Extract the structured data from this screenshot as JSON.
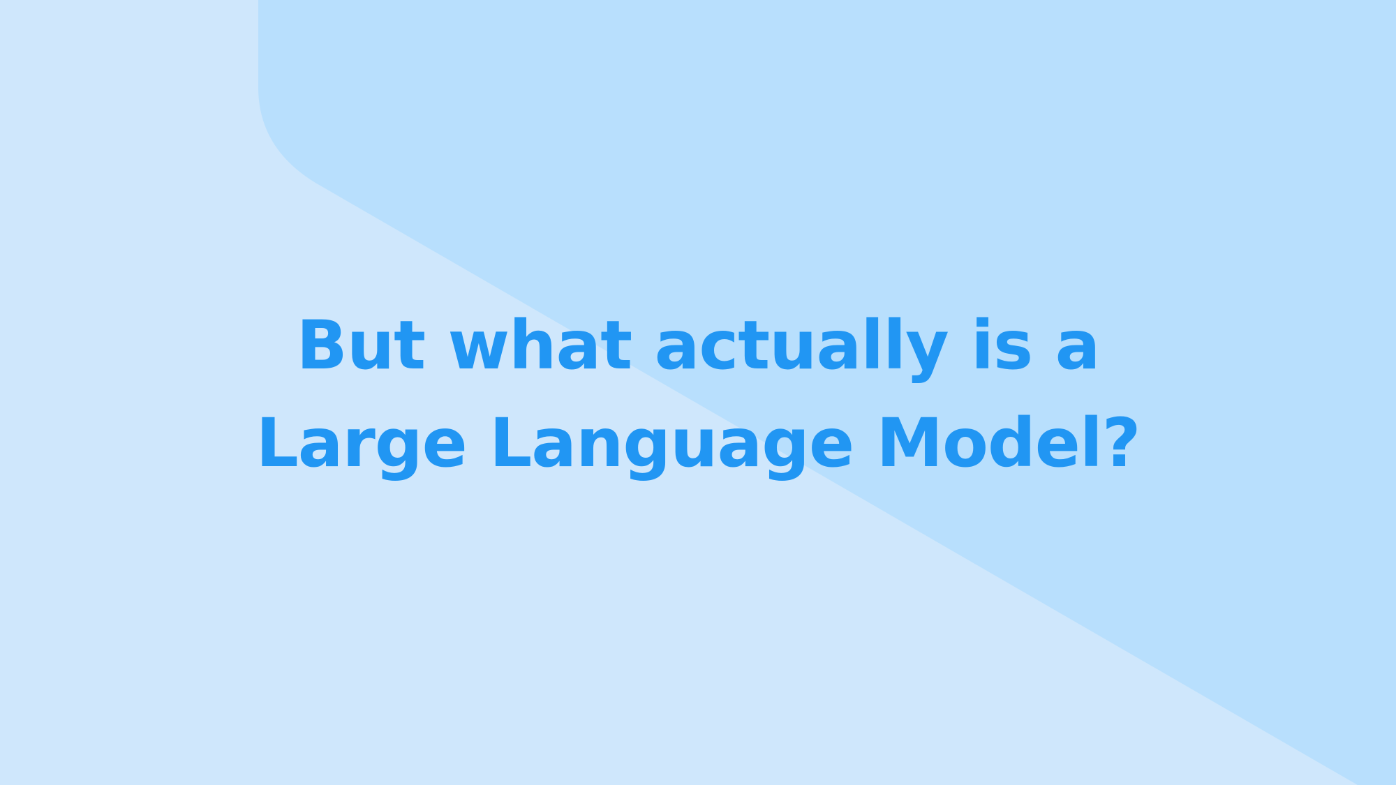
{
  "slide": {
    "headline_line1": "But what actually is a",
    "headline_line2": "Large Language Model?"
  },
  "colors": {
    "background": "#cfe7fc",
    "shape": "#b8dffd",
    "text": "#2196f3"
  }
}
